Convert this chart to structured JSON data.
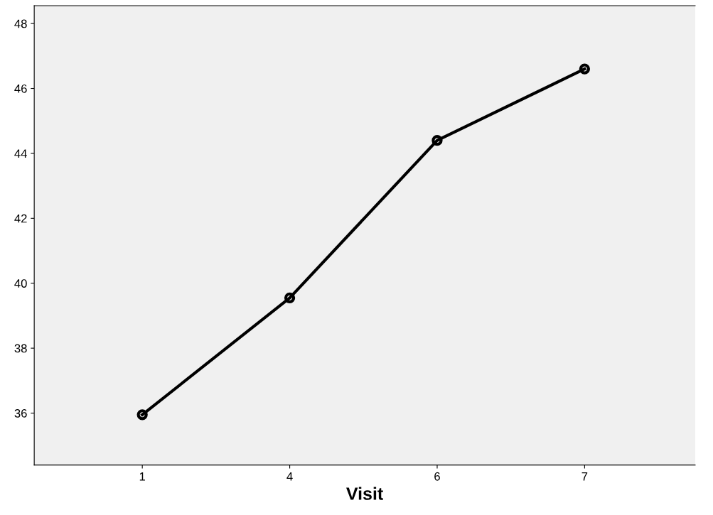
{
  "chart_data": {
    "type": "line",
    "xlabel": "Visit",
    "categories": [
      "1",
      "4",
      "6",
      "7"
    ],
    "series": [
      {
        "color": "#000000",
        "values": [
          35.95,
          39.55,
          44.4,
          46.6
        ]
      }
    ],
    "ylim": [
      34.4,
      48.55
    ],
    "yticks": [
      36,
      38,
      40,
      42,
      44,
      46,
      48
    ],
    "grid": false,
    "legend": false,
    "marker": "circle",
    "line_style": "solid"
  }
}
